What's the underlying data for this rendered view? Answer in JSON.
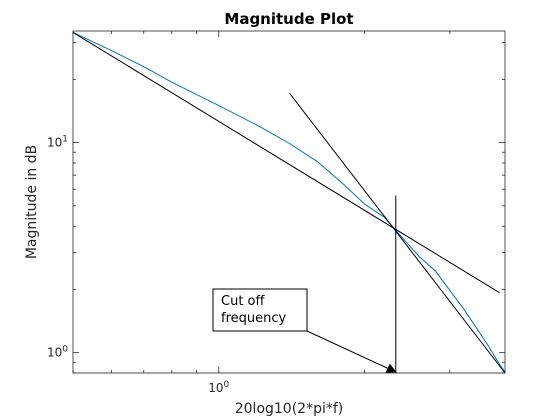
{
  "chart_data": {
    "type": "line",
    "title": "Magnitude Plot",
    "xlabel": "20log10(2*pi*f)",
    "ylabel": "Magnitude in dB",
    "xscale": "log",
    "yscale": "log",
    "xlim": [
      0.5,
      3.9
    ],
    "ylim": [
      0.8,
      34
    ],
    "grid": false,
    "xticks": [
      {
        "value": 1,
        "base": "10",
        "exp": "0"
      }
    ],
    "yticks": [
      {
        "value": 1,
        "base": "10",
        "exp": "0"
      },
      {
        "value": 10,
        "base": "10",
        "exp": "1"
      }
    ],
    "series": [
      {
        "color": "#0072BD",
        "x": [
          0.5,
          0.6,
          0.7,
          0.8,
          1.0,
          1.2,
          1.4,
          1.6,
          1.8,
          2.0,
          2.2,
          2.4,
          2.6,
          2.8,
          3.0,
          3.2,
          3.4,
          3.6,
          3.8,
          3.9
        ],
        "y": [
          33.5,
          27.5,
          23.0,
          19.4,
          15.0,
          12.1,
          9.9,
          8.1,
          6.4,
          5.1,
          4.4,
          3.5,
          2.85,
          2.45,
          1.98,
          1.62,
          1.32,
          1.08,
          0.88,
          0.81
        ]
      },
      {
        "color": "#000000",
        "x": [
          0.5,
          3.8
        ],
        "y": [
          33.5,
          1.93
        ]
      },
      {
        "color": "#000000",
        "x": [
          1.4,
          3.9
        ],
        "y": [
          17.2,
          0.8
        ]
      }
    ],
    "annotations": [
      {
        "text_lines": [
          "Cut off",
          "frequency"
        ],
        "arrow_to": {
          "x": 2.32,
          "y": 0.8
        }
      },
      {
        "text_lines": [],
        "type": "vertical-line",
        "x": 2.32,
        "y_from": 0.8,
        "y_to": 5.6
      }
    ]
  }
}
